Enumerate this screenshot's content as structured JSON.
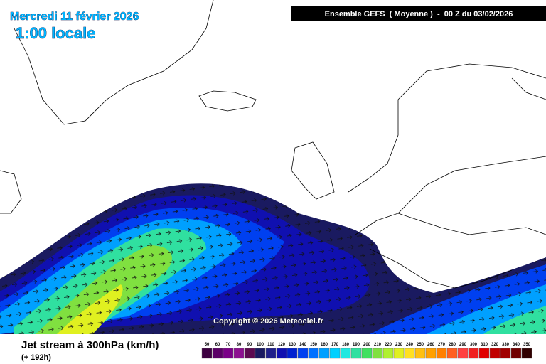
{
  "header": {
    "date": "Mercredi 11 février 2026",
    "time": "1:00 locale",
    "model": "Ensemble GEFS  ( Moyenne )  -  00 Z du 03/02/2026"
  },
  "copyright": "Copyright © 2026 Meteociel.fr",
  "footer": {
    "title": "Jet stream à 300hPa (km/h)",
    "lead": "(+ 192h)"
  },
  "legend": [
    {
      "label": 50,
      "color": "#3c0040"
    },
    {
      "label": 60,
      "color": "#5a0066"
    },
    {
      "label": 70,
      "color": "#7a0088"
    },
    {
      "label": 80,
      "color": "#8c1090"
    },
    {
      "label": 90,
      "color": "#5c0a50"
    },
    {
      "label": 100,
      "color": "#1a1a60"
    },
    {
      "label": 110,
      "color": "#20208a"
    },
    {
      "label": 120,
      "color": "#1010b0"
    },
    {
      "label": 130,
      "color": "#0020d0"
    },
    {
      "label": 140,
      "color": "#0040f0"
    },
    {
      "label": 150,
      "color": "#0070ff"
    },
    {
      "label": 160,
      "color": "#00a0ff"
    },
    {
      "label": 170,
      "color": "#00d0ff"
    },
    {
      "label": 180,
      "color": "#20e8e0"
    },
    {
      "label": 190,
      "color": "#30e0a0"
    },
    {
      "label": 200,
      "color": "#40e060"
    },
    {
      "label": 210,
      "color": "#80e040"
    },
    {
      "label": 220,
      "color": "#b0f030"
    },
    {
      "label": 230,
      "color": "#e0f020"
    },
    {
      "label": 240,
      "color": "#ffe020"
    },
    {
      "label": 250,
      "color": "#ffc010"
    },
    {
      "label": 260,
      "color": "#ffa000"
    },
    {
      "label": 270,
      "color": "#ff8000"
    },
    {
      "label": 280,
      "color": "#ff6020"
    },
    {
      "label": 290,
      "color": "#ff4040"
    },
    {
      "label": 300,
      "color": "#f02020"
    },
    {
      "label": 310,
      "color": "#e00000"
    },
    {
      "label": 320,
      "color": "#c00000"
    },
    {
      "label": 330,
      "color": "#a00000"
    },
    {
      "label": 340,
      "color": "#700000"
    },
    {
      "label": 350,
      "color": "#300000"
    }
  ]
}
